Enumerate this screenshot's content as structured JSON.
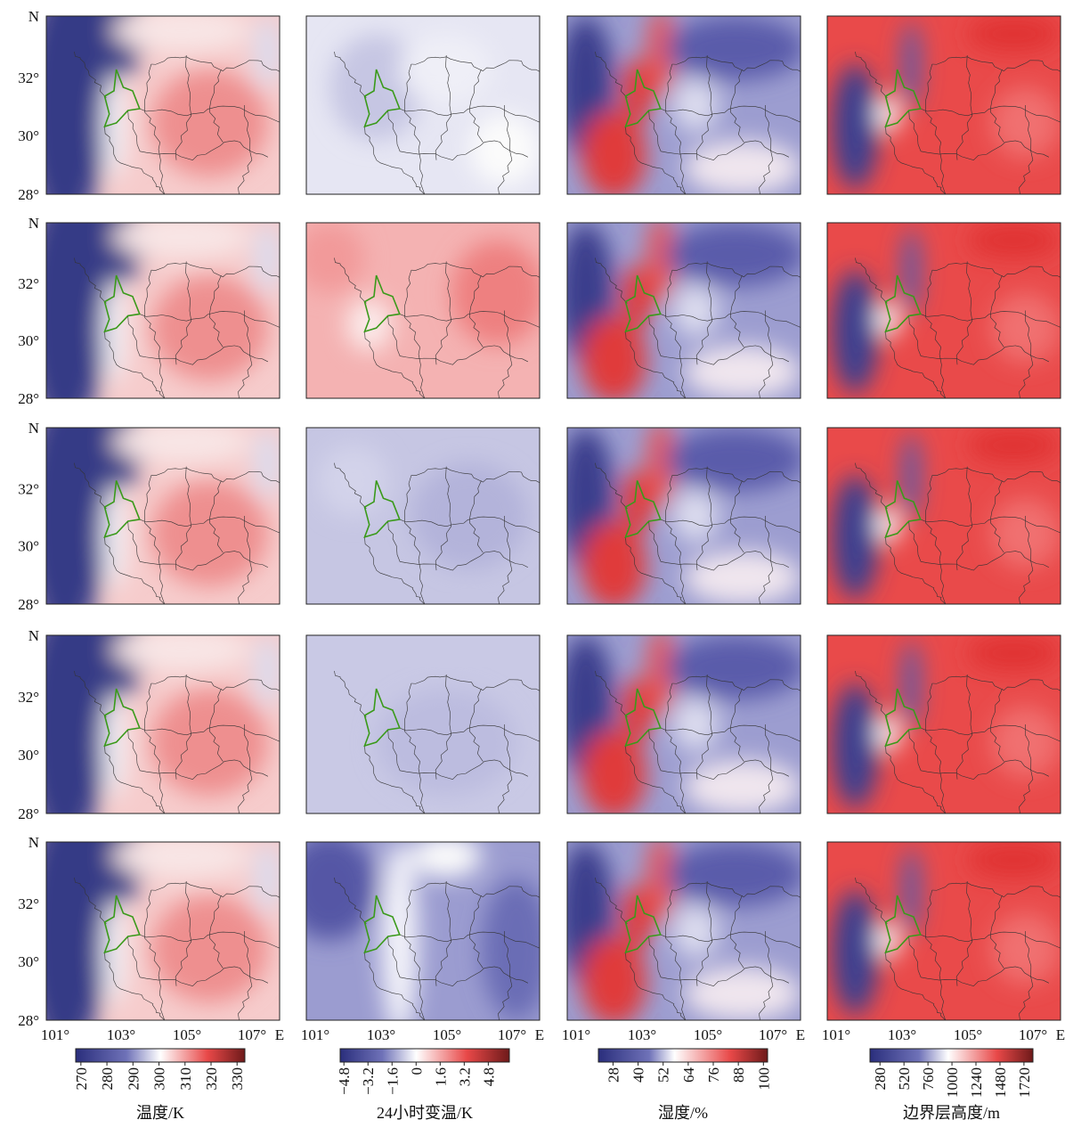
{
  "latitude_labels": [
    "N",
    "32°",
    "30°",
    "28°"
  ],
  "longitude_labels": [
    "101°",
    "103°",
    "105°",
    "107°",
    "E"
  ],
  "colorbars": [
    {
      "title": "温度/K",
      "range": [
        268,
        333
      ],
      "ticks": [
        270,
        280,
        290,
        300,
        310,
        320,
        330
      ]
    },
    {
      "title": "24小时变温/K",
      "range": [
        -5.05,
        6.2
      ],
      "ticks": [
        {
          "value": -4.8,
          "label": "−4.8"
        },
        {
          "value": -3.2,
          "label": "−3.2"
        },
        {
          "value": -1.6,
          "label": "−1.6"
        },
        0,
        1.6,
        3.2,
        4.8
      ]
    },
    {
      "title": "湿度/%",
      "range": [
        21,
        102
      ],
      "ticks": [
        28,
        40,
        52,
        64,
        76,
        88,
        100
      ]
    },
    {
      "title": "边界层高度/m",
      "range": [
        180,
        1810
      ],
      "ticks": [
        280,
        520,
        760,
        1000,
        1240,
        1480,
        1720
      ]
    }
  ]
}
